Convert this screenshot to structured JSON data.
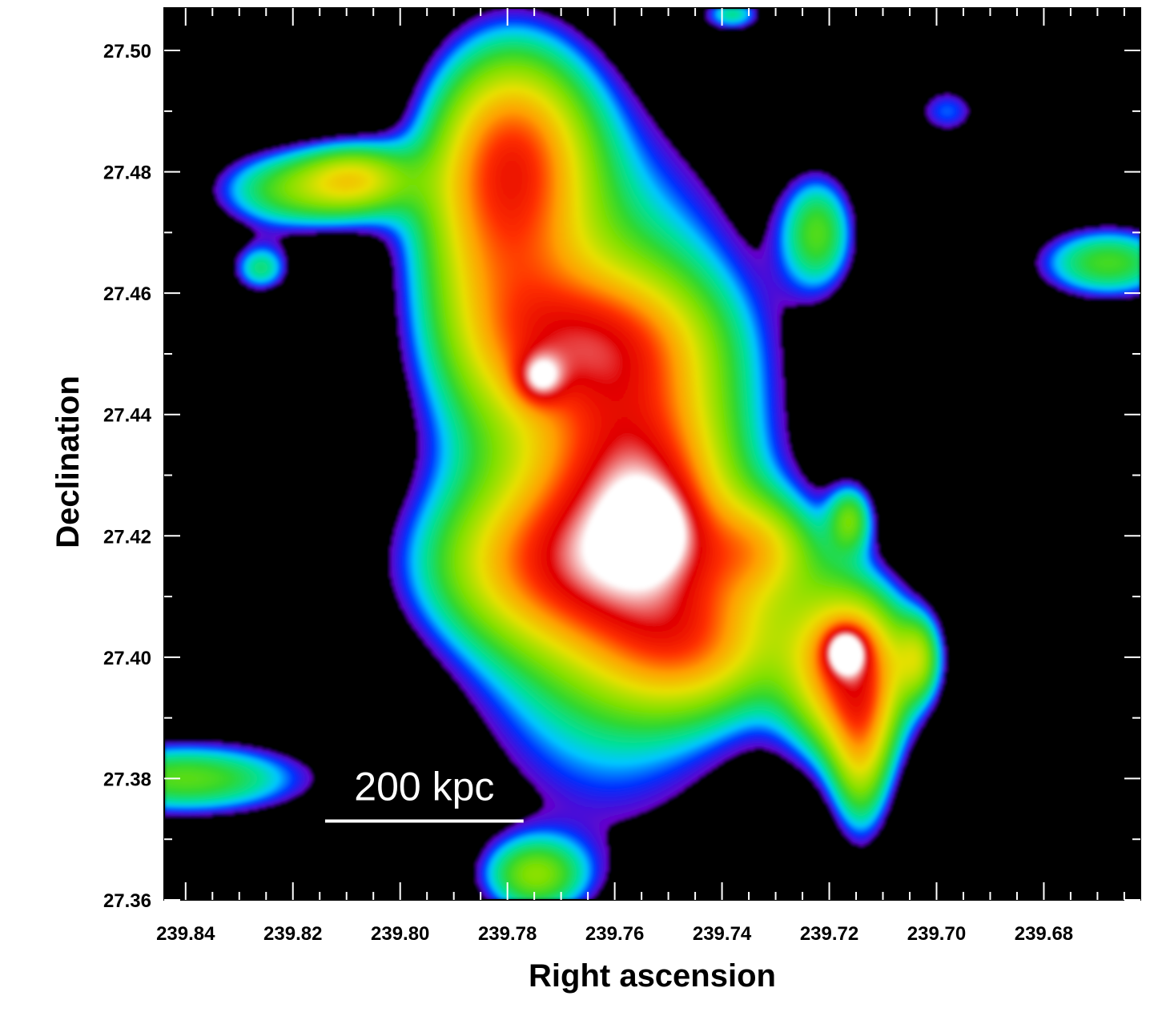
{
  "chart_data": {
    "type": "heatmap",
    "title": "",
    "xlabel": "Right ascension",
    "ylabel": "Declination",
    "xlim": [
      239.844,
      239.662
    ],
    "ylim": [
      27.36,
      27.507
    ],
    "x_direction": "decreasing",
    "x_ticks": [
      239.84,
      239.82,
      239.8,
      239.78,
      239.76,
      239.74,
      239.72,
      239.7,
      239.68
    ],
    "x_tick_labels": [
      "239.84",
      "239.82",
      "239.80",
      "239.78",
      "239.76",
      "239.74",
      "239.72",
      "239.70",
      "239.68"
    ],
    "y_ticks": [
      27.36,
      27.38,
      27.4,
      27.42,
      27.44,
      27.46,
      27.48,
      27.5
    ],
    "y_tick_labels": [
      "27.36",
      "27.38",
      "27.40",
      "27.42",
      "27.44",
      "27.46",
      "27.48",
      "27.50"
    ],
    "grid": false,
    "colormap": [
      "#000000",
      "#6a00c8",
      "#0030ff",
      "#00c8ff",
      "#00e0a0",
      "#30d830",
      "#80e000",
      "#e8e000",
      "#ffa000",
      "#ff3000",
      "#e00000",
      "#ffffff"
    ],
    "background_color": "#000000",
    "intensity_components": [
      {
        "ra": 239.761,
        "dec": 27.43,
        "sra": 0.02,
        "sdec": 0.035,
        "amp": 0.55
      },
      {
        "ra": 239.782,
        "dec": 27.472,
        "sra": 0.011,
        "sdec": 0.018,
        "amp": 0.48
      },
      {
        "ra": 239.778,
        "dec": 27.485,
        "sra": 0.01,
        "sdec": 0.011,
        "amp": 0.35
      },
      {
        "ra": 239.764,
        "dec": 27.452,
        "sra": 0.014,
        "sdec": 0.008,
        "amp": 0.4
      },
      {
        "ra": 239.774,
        "dec": 27.446,
        "sra": 0.003,
        "sdec": 0.0028,
        "amp": 0.35
      },
      {
        "ra": 239.755,
        "dec": 27.428,
        "sra": 0.01,
        "sdec": 0.012,
        "amp": 0.42
      },
      {
        "ra": 239.77,
        "dec": 27.415,
        "sra": 0.018,
        "sdec": 0.009,
        "amp": 0.42
      },
      {
        "ra": 239.752,
        "dec": 27.421,
        "sra": 0.005,
        "sdec": 0.005,
        "amp": 0.25
      },
      {
        "ra": 239.733,
        "dec": 27.418,
        "sra": 0.008,
        "sdec": 0.006,
        "amp": 0.35
      },
      {
        "ra": 239.745,
        "dec": 27.402,
        "sra": 0.012,
        "sdec": 0.008,
        "amp": 0.42
      },
      {
        "ra": 239.716,
        "dec": 27.398,
        "sra": 0.008,
        "sdec": 0.01,
        "amp": 0.75
      },
      {
        "ra": 239.717,
        "dec": 27.401,
        "sra": 0.0025,
        "sdec": 0.0025,
        "amp": 0.55
      },
      {
        "ra": 239.714,
        "dec": 27.383,
        "sra": 0.004,
        "sdec": 0.01,
        "amp": 0.35
      },
      {
        "ra": 239.703,
        "dec": 27.4,
        "sra": 0.003,
        "sdec": 0.005,
        "amp": 0.3
      },
      {
        "ra": 239.716,
        "dec": 27.423,
        "sra": 0.003,
        "sdec": 0.004,
        "amp": 0.3
      },
      {
        "ra": 239.722,
        "dec": 27.47,
        "sra": 0.005,
        "sdec": 0.007,
        "amp": 0.33
      },
      {
        "ra": 239.808,
        "dec": 27.479,
        "sra": 0.007,
        "sdec": 0.004,
        "amp": 0.36
      },
      {
        "ra": 239.82,
        "dec": 27.477,
        "sra": 0.011,
        "sdec": 0.005,
        "amp": 0.36
      },
      {
        "ra": 239.826,
        "dec": 27.464,
        "sra": 0.004,
        "sdec": 0.003,
        "amp": 0.28
      },
      {
        "ra": 239.698,
        "dec": 27.49,
        "sra": 0.005,
        "sdec": 0.0035,
        "amp": 0.2
      },
      {
        "ra": 239.668,
        "dec": 27.465,
        "sra": 0.01,
        "sdec": 0.0045,
        "amp": 0.36
      },
      {
        "ra": 239.84,
        "dec": 27.38,
        "sra": 0.017,
        "sdec": 0.0045,
        "amp": 0.38
      },
      {
        "ra": 239.775,
        "dec": 27.364,
        "sra": 0.007,
        "sdec": 0.0045,
        "amp": 0.36
      },
      {
        "ra": 239.738,
        "dec": 27.506,
        "sra": 0.004,
        "sdec": 0.002,
        "amp": 0.25
      }
    ],
    "annotations": [
      {
        "text": "200 kpc",
        "type": "scale-bar",
        "ra_start": 239.814,
        "ra_end": 239.777,
        "dec": 27.373
      }
    ]
  }
}
